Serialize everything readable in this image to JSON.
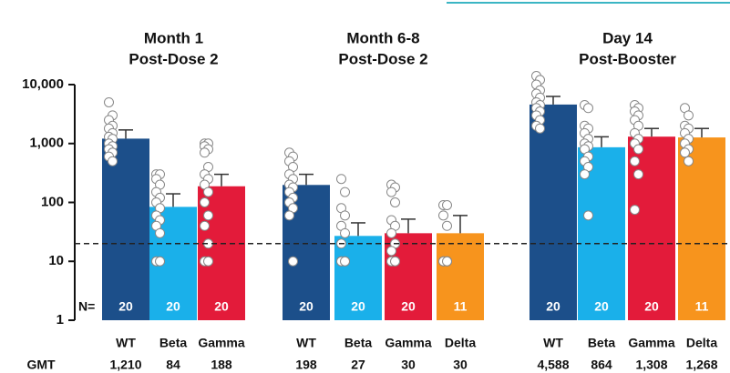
{
  "chart_data": {
    "type": "bar",
    "log_scale": true,
    "ylim": [
      1,
      10000
    ],
    "yticks": [
      1,
      10,
      100,
      {
        "value": 1000,
        "label": "1,000"
      },
      {
        "value": 10000,
        "label": "10,000"
      }
    ],
    "reference_line": 20,
    "n_label": "N=",
    "gmt_label": "GMT",
    "panels": [
      {
        "title": "Month 1",
        "subtitle": "Post-Dose 2",
        "bars": [
          {
            "category": "WT",
            "color": "#1c4f8a",
            "value": 1210,
            "value_label": "1,210",
            "n": 20,
            "error": 1700,
            "points": [
              5000,
              3000,
              2500,
              2000,
              1800,
              1500,
              1300,
              1200,
              1000,
              900,
              800,
              700,
              600,
              500
            ]
          },
          {
            "category": "Beta",
            "color": "#1ab0ea",
            "value": 84,
            "n": 20,
            "error": 140,
            "points": [
              300,
              300,
              250,
              200,
              150,
              120,
              100,
              80,
              60,
              50,
              40,
              30,
              10,
              10,
              10,
              10
            ]
          },
          {
            "category": "Gamma",
            "color": "#e31b3a",
            "value": 188,
            "n": 20,
            "error": 300,
            "points": [
              1000,
              1000,
              900,
              800,
              700,
              400,
              300,
              250,
              200,
              150,
              100,
              60,
              40,
              20,
              10,
              10
            ]
          }
        ]
      },
      {
        "title": "Month 6-8",
        "subtitle": "Post-Dose 2",
        "bars": [
          {
            "category": "WT",
            "color": "#1c4f8a",
            "value": 198,
            "n": 20,
            "error": 300,
            "points": [
              700,
              600,
              500,
              400,
              300,
              250,
              200,
              180,
              150,
              120,
              100,
              80,
              60,
              10
            ]
          },
          {
            "category": "Beta",
            "color": "#1ab0ea",
            "value": 27,
            "n": 20,
            "error": 45,
            "points": [
              250,
              150,
              80,
              60,
              40,
              30,
              20,
              10,
              10,
              10,
              10,
              10,
              10,
              10
            ]
          },
          {
            "category": "Gamma",
            "color": "#e31b3a",
            "value": 30,
            "n": 20,
            "error": 52,
            "points": [
              200,
              180,
              150,
              100,
              50,
              40,
              30,
              20,
              15,
              10,
              10,
              10,
              10,
              10
            ]
          },
          {
            "category": "Delta",
            "color": "#f7941d",
            "value": 30,
            "n": 11,
            "error": 60,
            "points": [
              90,
              90,
              60,
              40,
              10,
              10,
              10,
              10,
              10,
              10
            ]
          }
        ]
      },
      {
        "title": "Day 14",
        "subtitle": "Post-Booster",
        "bars": [
          {
            "category": "WT",
            "color": "#1c4f8a",
            "value": 4588,
            "value_label": "4,588",
            "n": 20,
            "error": 6300,
            "points": [
              14000,
              12000,
              10000,
              8000,
              7000,
              6000,
              5000,
              4500,
              4000,
              3500,
              3000,
              2500,
              2000,
              1800
            ]
          },
          {
            "category": "Beta",
            "color": "#1ab0ea",
            "value": 864,
            "n": 20,
            "error": 1300,
            "points": [
              4500,
              4000,
              2000,
              1800,
              1500,
              1200,
              1000,
              900,
              800,
              600,
              500,
              400,
              300,
              60
            ]
          },
          {
            "category": "Gamma",
            "color": "#e31b3a",
            "value": 1308,
            "value_label": "1,308",
            "n": 20,
            "error": 1800,
            "points": [
              4500,
              4000,
              3500,
              3000,
              2500,
              2000,
              1500,
              1200,
              1000,
              800,
              500,
              300,
              75
            ]
          },
          {
            "category": "Delta",
            "color": "#f7941d",
            "value": 1268,
            "value_label": "1,268",
            "n": 11,
            "error": 1800,
            "points": [
              4000,
              3000,
              2000,
              1800,
              1500,
              1200,
              1000,
              800,
              700,
              500
            ]
          }
        ]
      }
    ]
  }
}
